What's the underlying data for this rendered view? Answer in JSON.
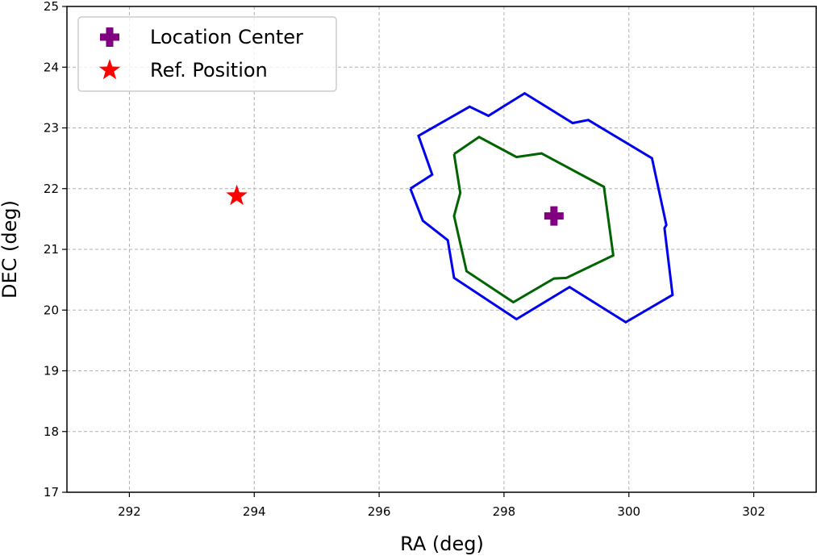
{
  "chart_data": {
    "type": "scatter",
    "xlabel": "RA (deg)",
    "ylabel": "DEC (deg)",
    "xlim": [
      291,
      303
    ],
    "ylim": [
      17,
      25
    ],
    "xticks": [
      "292",
      "294",
      "296",
      "298",
      "300",
      "302"
    ],
    "yticks": [
      "17",
      "18",
      "19",
      "20",
      "21",
      "22",
      "23",
      "24",
      "25"
    ],
    "grid": true,
    "legend_position": "top-left",
    "contours": [
      {
        "color": "#0000ee",
        "points": [
          [
            296.5,
            22.0
          ],
          [
            296.7,
            21.47
          ],
          [
            297.1,
            21.15
          ],
          [
            297.2,
            20.53
          ],
          [
            298.2,
            19.85
          ],
          [
            299.05,
            20.38
          ],
          [
            299.95,
            19.8
          ],
          [
            300.7,
            20.25
          ],
          [
            300.57,
            21.35
          ],
          [
            300.6,
            21.4
          ],
          [
            300.37,
            22.5
          ],
          [
            299.35,
            23.13
          ],
          [
            299.1,
            23.08
          ],
          [
            298.33,
            23.57
          ],
          [
            297.75,
            23.2
          ],
          [
            297.45,
            23.35
          ],
          [
            296.63,
            22.87
          ],
          [
            296.85,
            22.23
          ],
          [
            296.5,
            22.0
          ]
        ]
      },
      {
        "color": "#006400",
        "points": [
          [
            297.2,
            22.57
          ],
          [
            297.6,
            22.85
          ],
          [
            298.2,
            22.52
          ],
          [
            298.6,
            22.58
          ],
          [
            299.6,
            22.03
          ],
          [
            299.75,
            20.9
          ],
          [
            299.0,
            20.53
          ],
          [
            298.8,
            20.52
          ],
          [
            298.15,
            20.13
          ],
          [
            297.4,
            20.64
          ],
          [
            297.2,
            21.55
          ],
          [
            297.3,
            21.93
          ],
          [
            297.2,
            22.57
          ]
        ]
      }
    ],
    "markers": [
      {
        "name": "Location Center",
        "x": 298.8,
        "y": 21.55,
        "color": "#800080",
        "shape": "plus"
      },
      {
        "name": "Ref. Position",
        "x": 293.72,
        "y": 21.88,
        "color": "#ff0000",
        "shape": "star"
      }
    ]
  }
}
